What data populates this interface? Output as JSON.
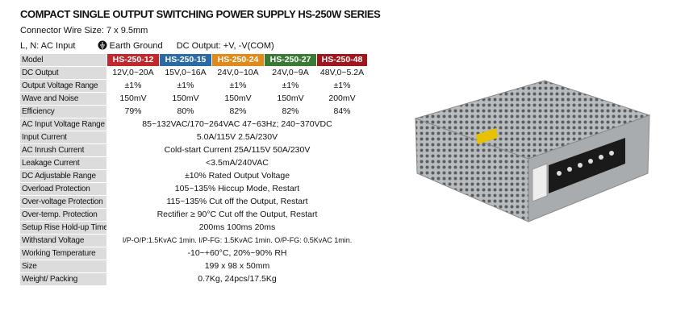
{
  "header": {
    "title": "COMPACT SINGLE OUTPUT SWITCHING POWER SUPPLY HS-250W SERIES",
    "connector": "Connector Wire Size: 7 x 9.5mm",
    "ac_input": "L, N: AC Input",
    "earth_ground": "Earth Ground",
    "dc_output": "DC Output: +V, -V(COM)"
  },
  "table": {
    "rows": [
      {
        "label": "Model",
        "cells": [
          "HS-250-12",
          "HS-250-15",
          "HS-250-24",
          "HS-250-27",
          "HS-250-48"
        ]
      },
      {
        "label": "DC Output",
        "cells": [
          "12V,0~20A",
          "15V,0~16A",
          "24V,0~10A",
          "24V,0~9A",
          "48V,0~5.2A"
        ]
      },
      {
        "label": "Output Voltage Range",
        "cells": [
          "±1%",
          "±1%",
          "±1%",
          "±1%",
          "±1%"
        ]
      },
      {
        "label": "Wave and Noise",
        "cells": [
          "150mV",
          "150mV",
          "150mV",
          "150mV",
          "200mV"
        ]
      },
      {
        "label": "Efficiency",
        "cells": [
          "79%",
          "80%",
          "82%",
          "82%",
          "84%"
        ]
      },
      {
        "label": "AC Input Voltage Range",
        "cells": [
          "85~132VAC/170~264VAC 47~63Hz; 240~370VDC"
        ]
      },
      {
        "label": "Input Current",
        "cells": [
          "5.0A/115V  2.5A/230V"
        ]
      },
      {
        "label": "AC Inrush Current",
        "cells": [
          "Cold-start Current 25A/115V  50A/230V"
        ]
      },
      {
        "label": "Leakage Current",
        "cells": [
          "<3.5mA/240VAC"
        ]
      },
      {
        "label": "DC Adjustable Range",
        "cells": [
          "±10% Rated Output Voltage"
        ]
      },
      {
        "label": "Overload Protection",
        "cells": [
          "105~135% Hiccup Mode, Restart"
        ]
      },
      {
        "label": "Over-voltage Protection",
        "cells": [
          "115~135% Cut off the Output, Restart"
        ]
      },
      {
        "label": "Over-temp. Protection",
        "cells": [
          "Rectifier ≥ 90°C Cut off the Output, Restart"
        ]
      },
      {
        "label": "Setup Rise Hold-up Time",
        "cells": [
          "200ms 100ms 20ms"
        ]
      },
      {
        "label": "Withstand Voltage",
        "cells": [
          "I/P-O/P:1.5KvAC 1min. I/P-FG: 1.5KvAC 1min. O/P-FG: 0.5KvAC 1min."
        ]
      },
      {
        "label": "Working Temperature",
        "cells": [
          "-10~+60°C, 20%~90% RH"
        ]
      },
      {
        "label": "Size",
        "cells": [
          "199 x 98 x 50mm"
        ]
      },
      {
        "label": "Weight/ Packing",
        "cells": [
          "0.7Kg, 24pcs/17.5Kg"
        ]
      }
    ]
  }
}
